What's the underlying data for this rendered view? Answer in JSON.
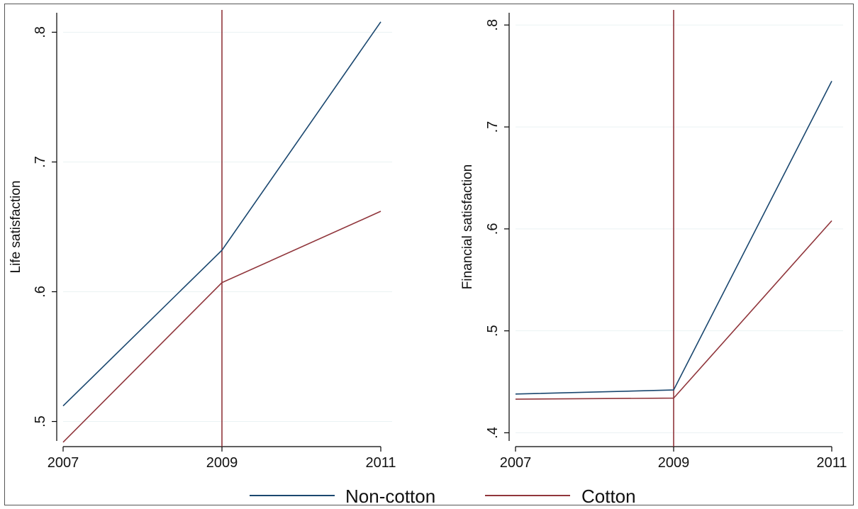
{
  "chart_data": [
    {
      "type": "line",
      "ylabel": "Life satisfaction",
      "xlabel": "",
      "x": [
        2007,
        2009,
        2011
      ],
      "xticks": [
        "2007",
        "2009",
        "2011"
      ],
      "ylim": [
        0.485,
        0.815
      ],
      "yticks": [
        ".5",
        ".6",
        ".7",
        ".8"
      ],
      "ytick_values": [
        0.5,
        0.6,
        0.7,
        0.8
      ],
      "vline": 2009,
      "grid": true,
      "series": [
        {
          "name": "Non-cotton",
          "values": [
            0.512,
            0.632,
            0.808
          ]
        },
        {
          "name": "Cotton",
          "values": [
            0.484,
            0.607,
            0.662
          ]
        }
      ]
    },
    {
      "type": "line",
      "ylabel": "Financial satisfaction",
      "xlabel": "",
      "x": [
        2007,
        2009,
        2011
      ],
      "xticks": [
        "2007",
        "2009",
        "2011"
      ],
      "ylim": [
        0.392,
        0.812
      ],
      "yticks": [
        ".4",
        ".5",
        ".6",
        ".7",
        ".8"
      ],
      "ytick_values": [
        0.4,
        0.5,
        0.6,
        0.7,
        0.8
      ],
      "vline": 2009,
      "grid": true,
      "series": [
        {
          "name": "Non-cotton",
          "values": [
            0.438,
            0.442,
            0.745
          ]
        },
        {
          "name": "Cotton",
          "values": [
            0.433,
            0.434,
            0.608
          ]
        }
      ]
    }
  ],
  "legend": {
    "placement": "bottom",
    "items": [
      {
        "label": "Non-cotton",
        "color": "#1a476f"
      },
      {
        "label": "Cotton",
        "color": "#90353b"
      }
    ]
  },
  "colors": {
    "series": [
      "#1a476f",
      "#90353b"
    ],
    "vline": "#90353b",
    "grid": "#eaf2f3",
    "axis": "#000000"
  }
}
